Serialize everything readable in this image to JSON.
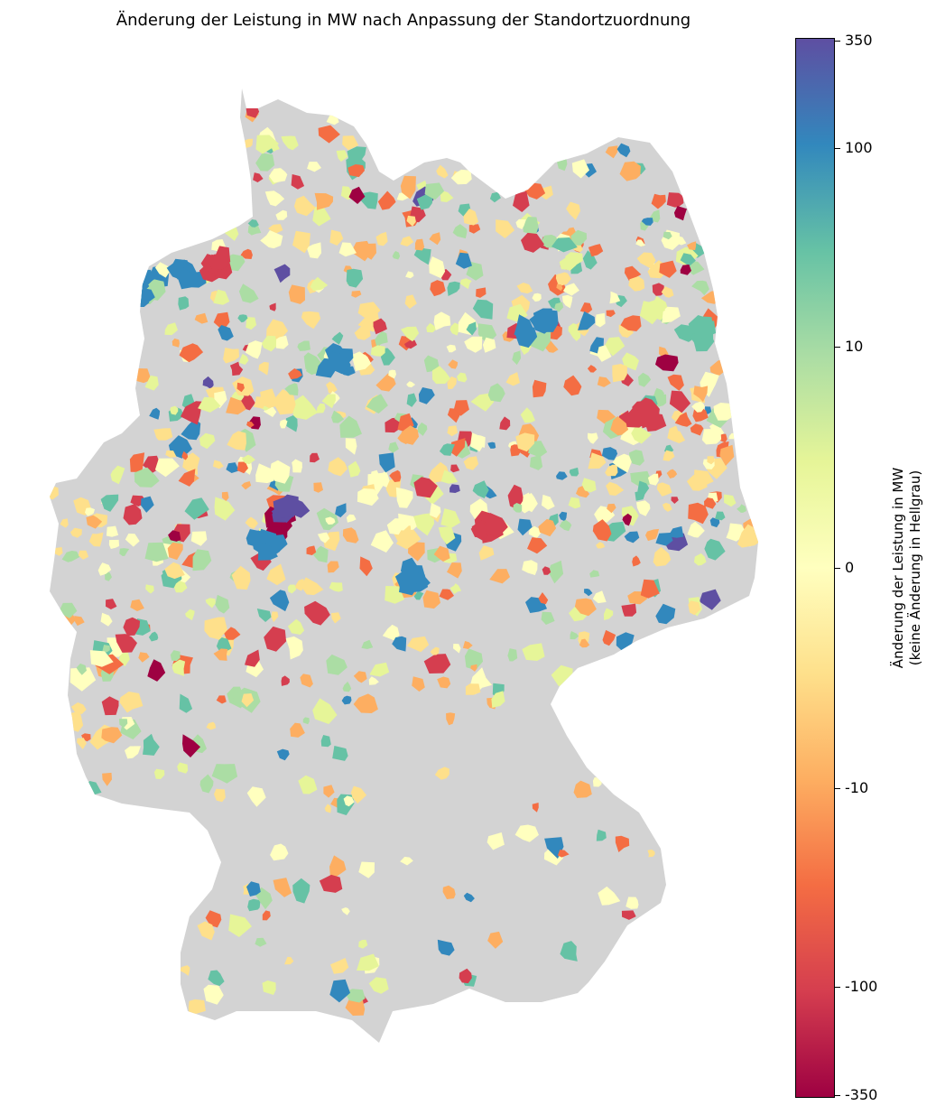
{
  "title": "Änderung der Leistung in MW nach Anpassung der Standortzuordnung",
  "colorbar": {
    "label_line1": "Änderung der Leistung in MW",
    "label_line2": "(keine Änderung in Hellgrau)",
    "ticks": [
      "350",
      "100",
      "10",
      "0",
      "-10",
      "-100",
      "-350"
    ],
    "stops": [
      "#5e4fa2",
      "#3288bd",
      "#66c2a5",
      "#abdda4",
      "#e6f598",
      "#ffffbf",
      "#fee08b",
      "#fdae61",
      "#f46d43",
      "#d53e4f",
      "#9e0142"
    ]
  },
  "map": {
    "background_color": "#d3d3d3",
    "no_change_label": "keine Änderung"
  }
}
